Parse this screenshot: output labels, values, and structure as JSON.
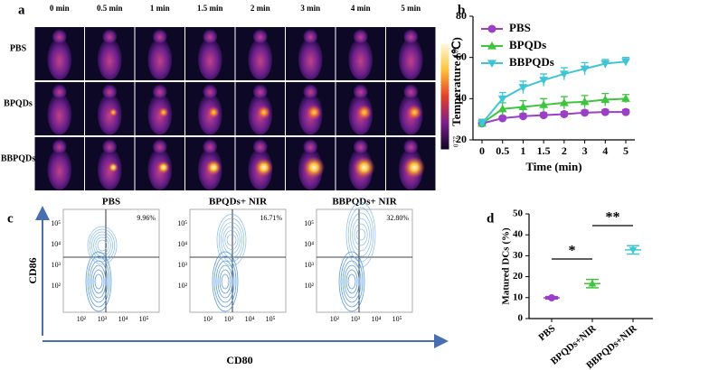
{
  "panel_a": {
    "letter": "a",
    "times": [
      "0 min",
      "0.5 min",
      "1 min",
      "1.5 min",
      "2 min",
      "3 min",
      "4 min",
      "5 min"
    ],
    "rows": [
      "PBS",
      "BPQDs",
      "BBPQDs"
    ],
    "colorbar": {
      "max": "50.0",
      "min": "22.0"
    }
  },
  "panel_b": {
    "letter": "b"
  },
  "panel_c": {
    "letter": "c",
    "plots": [
      {
        "title": "PBS",
        "percent": "9.96%"
      },
      {
        "title": "BPQDs+ NIR",
        "percent": "16.71%"
      },
      {
        "title": "BBPQDs+ NIR",
        "percent": "32.80%"
      }
    ],
    "ticks": [
      "10²",
      "10³",
      "10⁴",
      "10⁵"
    ],
    "y_axis_label": "CD86",
    "x_axis_label": "CD80"
  },
  "panel_d": {
    "letter": "d"
  },
  "chart_data": [
    {
      "type": "line",
      "x_axis_label": "Time (min)",
      "y_axis_label": "Temperature (℃)",
      "categories": [
        "0",
        "0.5",
        "1",
        "1.5",
        "2",
        "3",
        "4",
        "5"
      ],
      "ylim": [
        20,
        80
      ],
      "yticks": [
        20,
        40,
        60,
        80
      ],
      "legend": "top-left",
      "series": [
        {
          "name": "PBS",
          "color": "#9b3fc6",
          "marker": "circle",
          "values": [
            28,
            30.5,
            31.5,
            32,
            32.5,
            33.2,
            33.5,
            33.5
          ],
          "errors": [
            1,
            1,
            1.2,
            1.2,
            1.2,
            1.2,
            1.2,
            1.2
          ]
        },
        {
          "name": "BPQDs",
          "color": "#3ec43e",
          "marker": "triangle",
          "values": [
            28,
            35,
            36,
            37,
            38,
            38.5,
            39.5,
            40
          ],
          "errors": [
            2,
            3,
            3,
            3,
            3,
            3,
            3,
            2
          ]
        },
        {
          "name": "BBPQDs",
          "color": "#3fc6d6",
          "marker": "triangle-down",
          "values": [
            28,
            40,
            45.5,
            49,
            52,
            54.5,
            57,
            58
          ],
          "errors": [
            2,
            3,
            3,
            3,
            3,
            3,
            2,
            2
          ]
        }
      ]
    },
    {
      "type": "scatter",
      "y_axis_label": "Matured DCs (%)",
      "categories": [
        "PBS",
        "BPQDs+NIR",
        "BBPQDs+NIR"
      ],
      "values": [
        9.9,
        16.7,
        32.8
      ],
      "errors": [
        0.6,
        2,
        2
      ],
      "colors": [
        "#9b3fc6",
        "#3ec43e",
        "#3fc6d6"
      ],
      "markers": [
        "circle",
        "triangle",
        "triangle-down"
      ],
      "ylim": [
        0,
        50
      ],
      "yticks": [
        0,
        10,
        20,
        30,
        40,
        50
      ],
      "annotations": [
        "*",
        "**"
      ]
    }
  ]
}
